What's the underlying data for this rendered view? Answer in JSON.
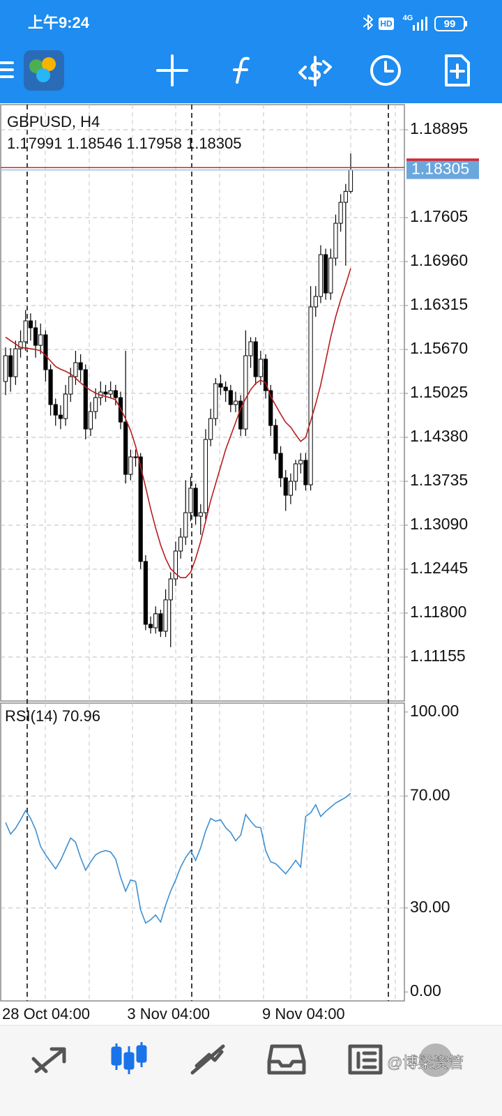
{
  "status_bar": {
    "time": "上午9:24",
    "hd": "HD",
    "network": "4G",
    "battery": "99"
  },
  "chart_data": [
    {
      "type": "candlestick",
      "title": "GBPUSD, H4",
      "categories": [
        "28 Oct 04:00",
        null,
        null,
        null,
        null,
        null,
        null,
        null,
        null,
        null,
        null,
        null,
        null,
        null,
        null,
        null,
        null,
        null,
        null,
        null,
        null,
        null,
        null,
        null,
        null,
        "3 Nov 04:00",
        null,
        null,
        null,
        null,
        null,
        null,
        null,
        null,
        null,
        null,
        null,
        null,
        null,
        null,
        null,
        null,
        null,
        null,
        null,
        null,
        null,
        null,
        null,
        null,
        null,
        null,
        "9 Nov 04:00",
        null,
        null,
        null,
        null,
        null,
        null,
        null,
        null,
        null,
        null,
        null,
        null,
        null,
        null,
        null,
        null,
        null
      ],
      "open": [
        1.152,
        1.15578,
        1.15271,
        1.1568,
        1.15783,
        1.1609,
        1.15988,
        1.15731,
        1.15885,
        1.15373,
        1.14861,
        1.14707,
        1.14656,
        1.15015,
        1.15271,
        1.15476,
        1.15373,
        1.14503,
        1.14759,
        1.14963,
        1.15045,
        1.15015,
        1.15066,
        1.14963,
        1.14605,
        1.13837,
        1.14093,
        1.14093,
        1.12558,
        1.11636,
        1.11585,
        1.1179,
        1.11534,
        1.11995,
        1.12302,
        1.12711,
        1.12916,
        1.13274,
        1.13633,
        1.13223,
        1.13274,
        1.14349,
        1.14656,
        1.15168,
        1.15117,
        1.15066,
        1.14861,
        1.14912,
        1.14503,
        1.15578,
        1.15783,
        1.15271,
        1.15527,
        1.15066,
        1.14554,
        1.14145,
        1.13786,
        1.1353,
        1.13735,
        1.13991,
        1.14042,
        1.13684,
        1.16295,
        1.16448,
        1.17062,
        1.16499,
        1.17011,
        1.17523,
        1.1783,
        1.17991
      ],
      "high": [
        1.157,
        1.1569,
        1.158,
        1.1595,
        1.1625,
        1.162,
        1.161,
        1.1605,
        1.1595,
        1.1545,
        1.1495,
        1.1485,
        1.1515,
        1.154,
        1.1565,
        1.156,
        1.1545,
        1.149,
        1.151,
        1.152,
        1.1515,
        1.152,
        1.1515,
        1.1505,
        1.1565,
        1.142,
        1.142,
        1.1415,
        1.1265,
        1.1175,
        1.119,
        1.1185,
        1.1215,
        1.124,
        1.1285,
        1.1305,
        1.1375,
        1.138,
        1.137,
        1.134,
        1.145,
        1.148,
        1.1525,
        1.153,
        1.152,
        1.1515,
        1.1505,
        1.15,
        1.1595,
        1.1585,
        1.1585,
        1.1565,
        1.156,
        1.1515,
        1.1465,
        1.1425,
        1.139,
        1.1385,
        1.1405,
        1.1415,
        1.1415,
        1.166,
        1.166,
        1.172,
        1.1715,
        1.1715,
        1.1765,
        1.1795,
        1.181,
        1.18546
      ],
      "low": [
        1.15,
        1.1505,
        1.1515,
        1.1555,
        1.1565,
        1.158,
        1.1555,
        1.156,
        1.152,
        1.147,
        1.1455,
        1.145,
        1.1455,
        1.149,
        1.1515,
        1.152,
        1.1435,
        1.144,
        1.1465,
        1.1485,
        1.149,
        1.1495,
        1.1485,
        1.145,
        1.137,
        1.1375,
        1.1395,
        1.1245,
        1.1155,
        1.115,
        1.115,
        1.1145,
        1.1145,
        1.113,
        1.122,
        1.126,
        1.128,
        1.1315,
        1.131,
        1.1295,
        1.1315,
        1.1425,
        1.1455,
        1.15,
        1.149,
        1.1475,
        1.1475,
        1.144,
        1.144,
        1.154,
        1.1515,
        1.1515,
        1.1495,
        1.144,
        1.1405,
        1.1365,
        1.133,
        1.134,
        1.136,
        1.1385,
        1.136,
        1.136,
        1.1615,
        1.1635,
        1.164,
        1.164,
        1.169,
        1.174,
        1.169,
        1.17958
      ],
      "close": [
        1.15578,
        1.15271,
        1.1568,
        1.15783,
        1.1609,
        1.15988,
        1.15731,
        1.15885,
        1.15373,
        1.14861,
        1.14707,
        1.14656,
        1.15015,
        1.15271,
        1.15476,
        1.15373,
        1.14503,
        1.14759,
        1.14963,
        1.15045,
        1.15015,
        1.15066,
        1.14963,
        1.14605,
        1.13837,
        1.14093,
        1.14093,
        1.12558,
        1.11636,
        1.11585,
        1.1179,
        1.11534,
        1.11995,
        1.12302,
        1.12711,
        1.12916,
        1.13274,
        1.13633,
        1.13223,
        1.13274,
        1.14349,
        1.14656,
        1.15168,
        1.15117,
        1.15066,
        1.14861,
        1.14912,
        1.14503,
        1.15578,
        1.15783,
        1.15271,
        1.15527,
        1.15066,
        1.14554,
        1.14145,
        1.13786,
        1.1353,
        1.13735,
        1.13991,
        1.14042,
        1.13684,
        1.16295,
        1.16448,
        1.17062,
        1.16499,
        1.17011,
        1.17523,
        1.1783,
        1.17991,
        1.18305
      ],
      "bull_color": "#ffffff",
      "bear_color": "#000000",
      "ma": {
        "color": "#b81c1c",
        "values": [
          1.1585,
          1.158,
          1.1575,
          1.157,
          1.1569,
          1.1568,
          1.1567,
          1.1565,
          1.1558,
          1.155,
          1.1542,
          1.1538,
          1.1535,
          1.1531,
          1.1525,
          1.1518,
          1.1512,
          1.1507,
          1.1503,
          1.15,
          1.1498,
          1.1496,
          1.1493,
          1.148,
          1.1465,
          1.1448,
          1.1425,
          1.1395,
          1.1365,
          1.1333,
          1.1305,
          1.128,
          1.126,
          1.1245,
          1.1238,
          1.1232,
          1.1232,
          1.124,
          1.126,
          1.1285,
          1.1315,
          1.1345,
          1.137,
          1.1395,
          1.142,
          1.144,
          1.146,
          1.148,
          1.1495,
          1.1508,
          1.1517,
          1.1522,
          1.1518,
          1.1498,
          1.1485,
          1.1472,
          1.146,
          1.1453,
          1.1442,
          1.1432,
          1.1438,
          1.1462,
          1.1487,
          1.1515,
          1.155,
          1.1585,
          1.1615,
          1.164,
          1.1662,
          1.1686
        ]
      },
      "ask_line": {
        "value": 1.1834,
        "color": "#d9232d"
      },
      "bid_color": "#8fc1ea",
      "ylim": [
        1.1051,
        1.19264
      ],
      "yticks": [
        1.18895,
        1.17605,
        {
          "value": 1.1696,
          "label": "1.16960"
        },
        1.16315,
        {
          "value": 1.1567,
          "label": "1.15670"
        },
        1.15025,
        {
          "value": 1.1438,
          "label": "1.14380"
        },
        1.13735,
        {
          "value": 1.1309,
          "label": "1.13090"
        },
        1.12445,
        {
          "value": 1.118,
          "label": "1.11800"
        },
        1.11155
      ],
      "grid": true
    },
    {
      "type": "line",
      "title": "RSI(14)",
      "color": "#3d8fd1",
      "values": [
        60.5,
        56.4,
        58.5,
        61.5,
        64.8,
        62.0,
        58.0,
        52.0,
        49.0,
        46.5,
        44.0,
        47.0,
        51.0,
        55.0,
        53.5,
        48.0,
        43.5,
        46.5,
        49.0,
        50.0,
        50.5,
        50.0,
        47.5,
        41.0,
        36.0,
        40.0,
        39.5,
        29.3,
        24.6,
        25.8,
        27.5,
        25.0,
        31.0,
        36.0,
        40.0,
        44.6,
        48.0,
        50.5,
        47.0,
        51.5,
        57.5,
        62.0,
        61.0,
        61.5,
        58.7,
        57.0,
        54.0,
        56.0,
        63.4,
        61.0,
        59.0,
        58.7,
        50.5,
        46.5,
        45.8,
        44.0,
        42.2,
        44.5,
        47.0,
        44.6,
        62.7,
        64.0,
        66.9,
        62.7,
        64.5,
        66.0,
        67.5,
        68.5,
        69.5,
        70.96
      ],
      "ylim": [
        -3.2,
        103.2
      ],
      "yticks": [
        {
          "value": 100,
          "label": "100.00"
        },
        {
          "value": 70,
          "label": "70.00"
        },
        {
          "value": 30,
          "label": "30.00"
        },
        {
          "value": 0,
          "label": "0.00"
        }
      ],
      "grid": true
    }
  ],
  "watermark": "@博梁资管"
}
